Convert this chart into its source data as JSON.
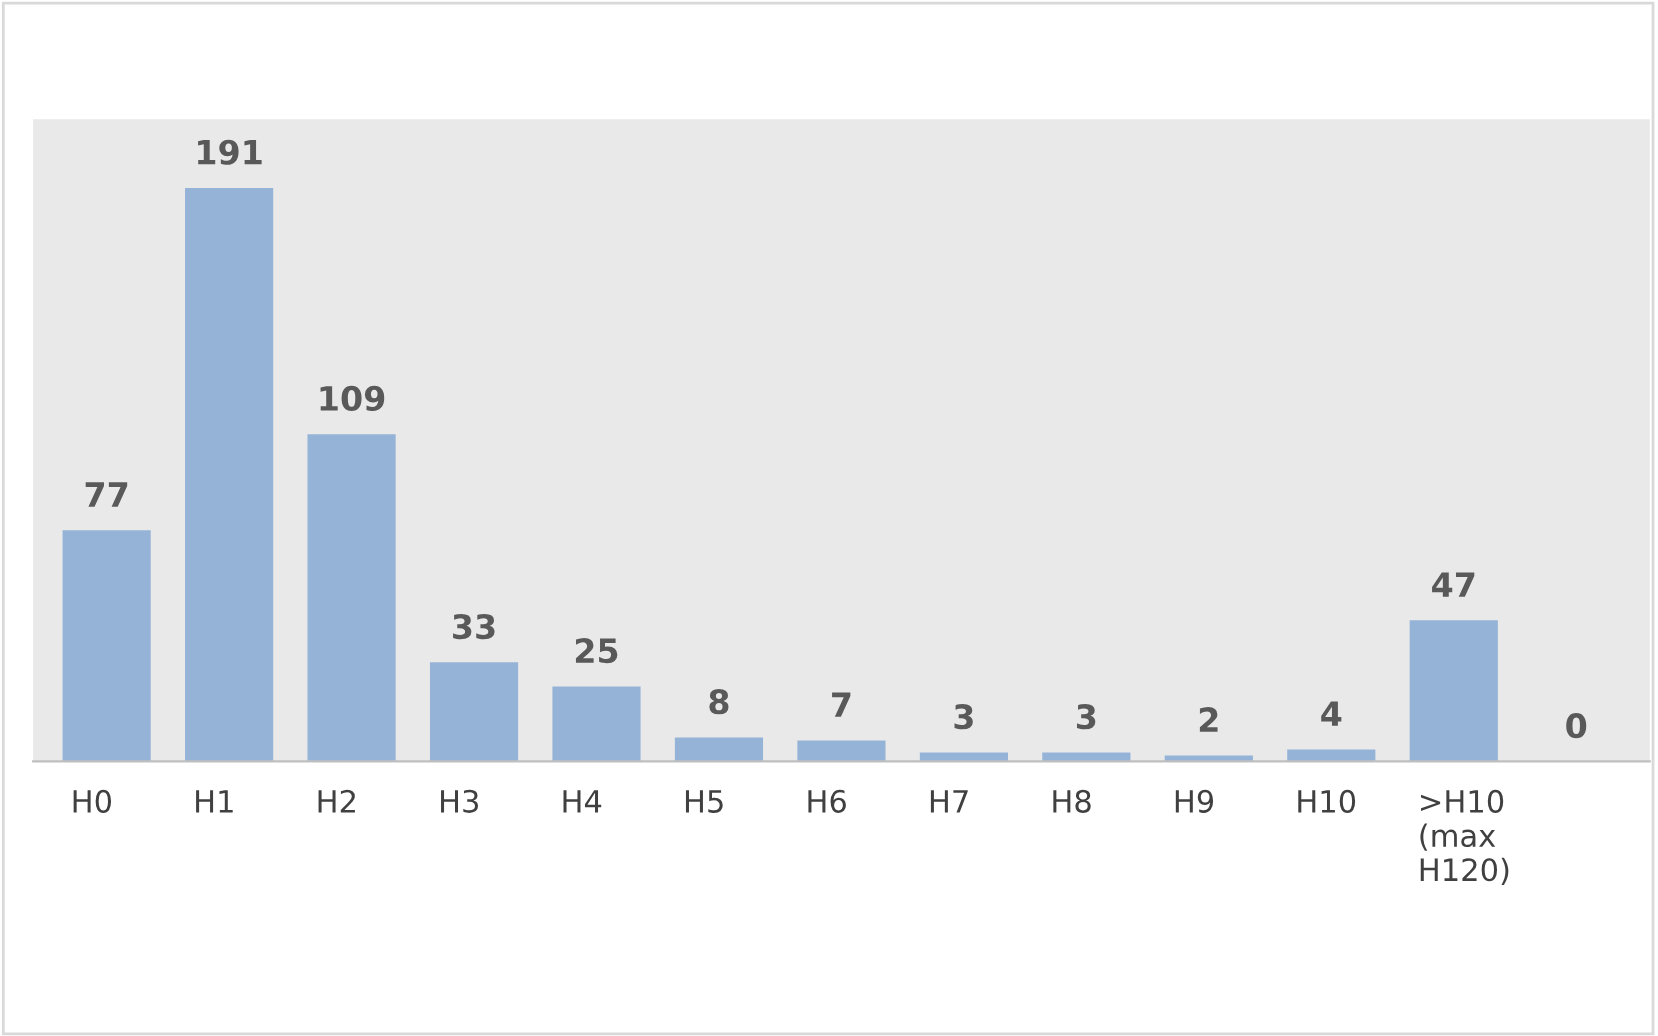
{
  "chart_data": {
    "type": "bar",
    "categories": [
      "H0",
      "H1",
      "H2",
      "H3",
      "H4",
      "H5",
      "H6",
      "H7",
      "H8",
      "H9",
      "H10",
      ">H10 (max H120)",
      null
    ],
    "values": [
      77,
      191,
      109,
      33,
      25,
      8,
      7,
      3,
      3,
      2,
      4,
      47,
      0
    ],
    "color": "#95b3d7",
    "data_labels": true
  }
}
